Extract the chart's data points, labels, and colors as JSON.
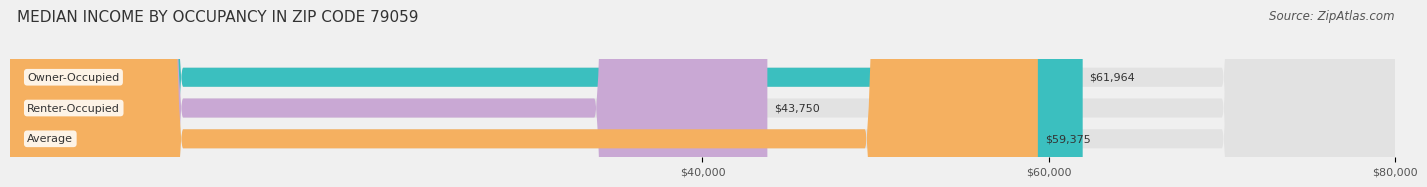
{
  "title": "MEDIAN INCOME BY OCCUPANCY IN ZIP CODE 79059",
  "source": "Source: ZipAtlas.com",
  "categories": [
    "Owner-Occupied",
    "Renter-Occupied",
    "Average"
  ],
  "values": [
    61964,
    43750,
    59375
  ],
  "bar_colors": [
    "#3bbfbf",
    "#c9a8d4",
    "#f5b060"
  ],
  "label_texts": [
    "$61,964",
    "$43,750",
    "$59,375"
  ],
  "xlim": [
    0,
    80000
  ],
  "xticks": [
    40000,
    60000,
    80000
  ],
  "xtick_labels": [
    "$40,000",
    "$60,000",
    "$80,000"
  ],
  "background_color": "#f0f0f0",
  "bar_background_color": "#e2e2e2",
  "title_fontsize": 11,
  "source_fontsize": 8.5,
  "label_fontsize": 8,
  "category_fontsize": 8,
  "tick_fontsize": 8
}
